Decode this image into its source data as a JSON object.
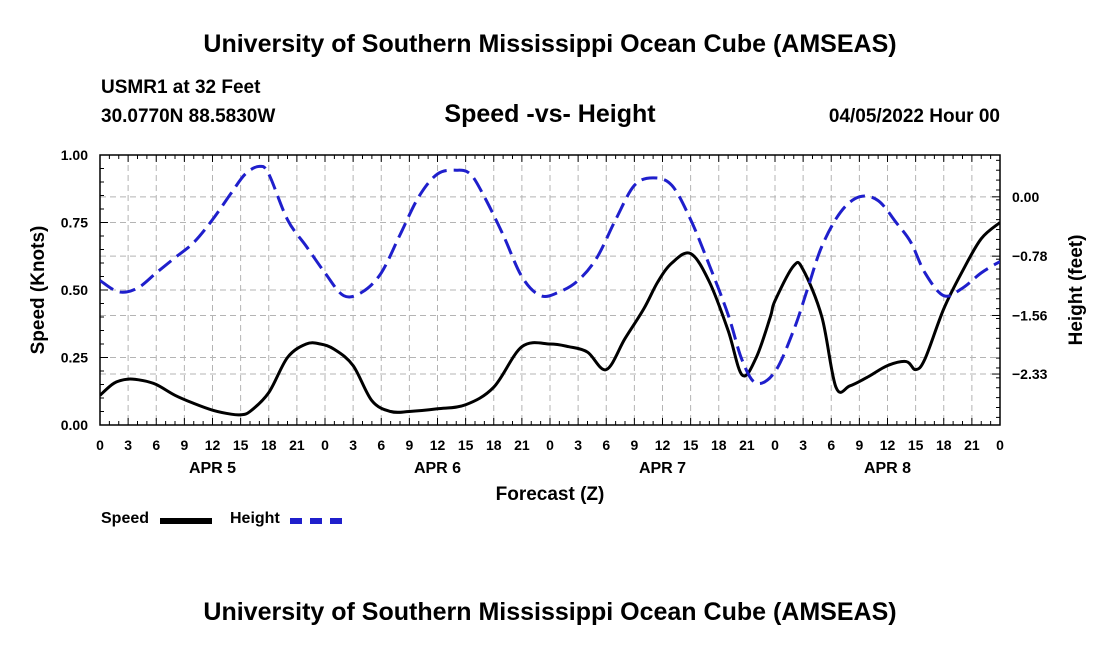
{
  "header": {
    "title": "University of Southern Mississippi Ocean Cube (AMSEAS)",
    "station": "USMR1 at 32 Feet",
    "coords": "30.0770N  88.5830W",
    "subtitle": "Speed -vs- Height",
    "datetime": "04/05/2022 Hour 00"
  },
  "legend": {
    "speed_label": "Speed",
    "height_label": "Height"
  },
  "footer": {
    "title": "University of Southern Mississippi Ocean Cube (AMSEAS)"
  },
  "colors": {
    "speed": "#000000",
    "height": "#1f1fcc",
    "grid": "#b4b4b4"
  },
  "chart_data": {
    "type": "line",
    "title": "Speed -vs- Height",
    "xlabel": "Forecast (Z)",
    "ylabel": "Speed (Knots)",
    "y2label": "Height (feet)",
    "xlim": [
      0,
      96
    ],
    "ylim": [
      0,
      1.0
    ],
    "y2lim": [
      -3.0,
      0.55
    ],
    "xticks": [
      0,
      3,
      6,
      9,
      12,
      15,
      18,
      21,
      24,
      27,
      30,
      33,
      36,
      39,
      42,
      45,
      48,
      51,
      54,
      57,
      60,
      63,
      66,
      69,
      72,
      75,
      78,
      81,
      84,
      87,
      90,
      93,
      96
    ],
    "xtick_labels": [
      "0",
      "3",
      "6",
      "9",
      "12",
      "15",
      "18",
      "21",
      "0",
      "3",
      "6",
      "9",
      "12",
      "15",
      "18",
      "21",
      "0",
      "3",
      "6",
      "9",
      "12",
      "15",
      "18",
      "21",
      "0",
      "3",
      "6",
      "9",
      "12",
      "15",
      "18",
      "21",
      "0"
    ],
    "day_labels": [
      {
        "x": 12,
        "label": "APR 5"
      },
      {
        "x": 36,
        "label": "APR 6"
      },
      {
        "x": 60,
        "label": "APR 7"
      },
      {
        "x": 84,
        "label": "APR 8"
      }
    ],
    "yticks": [
      0,
      0.25,
      0.5,
      0.75,
      1.0
    ],
    "ytick_labels": [
      "0.00",
      "0.25",
      "0.50",
      "0.75",
      "1.00"
    ],
    "y2ticks": [
      0.0,
      -0.78,
      -1.56,
      -2.33
    ],
    "y2tick_labels": [
      "0.00",
      "−0.78",
      "−1.56",
      "−2.33"
    ],
    "legend_position": "bottom-left",
    "grid": true,
    "series": [
      {
        "name": "Speed",
        "axis": "left",
        "style": "solid",
        "x": [
          0,
          1.5,
          3,
          4.5,
          6,
          8,
          10,
          12,
          14,
          15,
          16,
          18,
          20,
          22,
          23.5,
          25,
          27,
          29,
          31,
          33,
          36,
          39,
          42,
          45,
          48,
          50,
          52,
          54,
          56,
          58,
          59.5,
          61,
          63,
          65,
          67,
          68.5,
          70,
          71.5,
          72,
          74,
          75,
          77,
          78.5,
          80,
          82,
          84,
          86,
          87,
          88,
          90,
          92,
          94,
          96
        ],
        "y": [
          0.11,
          0.155,
          0.17,
          0.165,
          0.15,
          0.11,
          0.08,
          0.055,
          0.04,
          0.038,
          0.05,
          0.12,
          0.25,
          0.3,
          0.3,
          0.28,
          0.22,
          0.09,
          0.05,
          0.05,
          0.06,
          0.075,
          0.14,
          0.29,
          0.3,
          0.29,
          0.27,
          0.205,
          0.32,
          0.43,
          0.53,
          0.6,
          0.635,
          0.53,
          0.35,
          0.185,
          0.25,
          0.4,
          0.46,
          0.59,
          0.575,
          0.4,
          0.14,
          0.145,
          0.18,
          0.22,
          0.235,
          0.205,
          0.245,
          0.43,
          0.57,
          0.69,
          0.75
        ]
      },
      {
        "name": "Height",
        "axis": "right",
        "style": "dashed",
        "x": [
          0,
          2,
          4,
          6,
          8,
          10,
          12,
          14,
          15.5,
          17,
          18,
          20,
          22,
          24,
          26,
          28,
          30,
          32,
          34,
          36,
          38,
          39.5,
          41,
          43,
          45,
          47,
          49,
          51,
          53,
          55,
          57,
          59,
          61,
          63,
          65,
          67,
          68.5,
          70,
          72,
          74,
          75.5,
          77,
          79,
          81,
          83,
          85,
          86.5,
          88,
          90,
          92,
          94,
          96
        ],
        "y": [
          -1.1,
          -1.25,
          -1.2,
          -1.0,
          -0.8,
          -0.6,
          -0.3,
          0.05,
          0.3,
          0.4,
          0.3,
          -0.3,
          -0.65,
          -1.0,
          -1.3,
          -1.25,
          -1.0,
          -0.5,
          0.0,
          0.3,
          0.35,
          0.3,
          0.0,
          -0.5,
          -1.05,
          -1.3,
          -1.25,
          -1.1,
          -0.8,
          -0.3,
          0.15,
          0.25,
          0.15,
          -0.3,
          -0.9,
          -1.55,
          -2.15,
          -2.45,
          -2.3,
          -1.75,
          -1.2,
          -0.65,
          -0.2,
          0.0,
          -0.05,
          -0.35,
          -0.6,
          -1.0,
          -1.3,
          -1.2,
          -1.0,
          -0.85
        ]
      }
    ]
  }
}
